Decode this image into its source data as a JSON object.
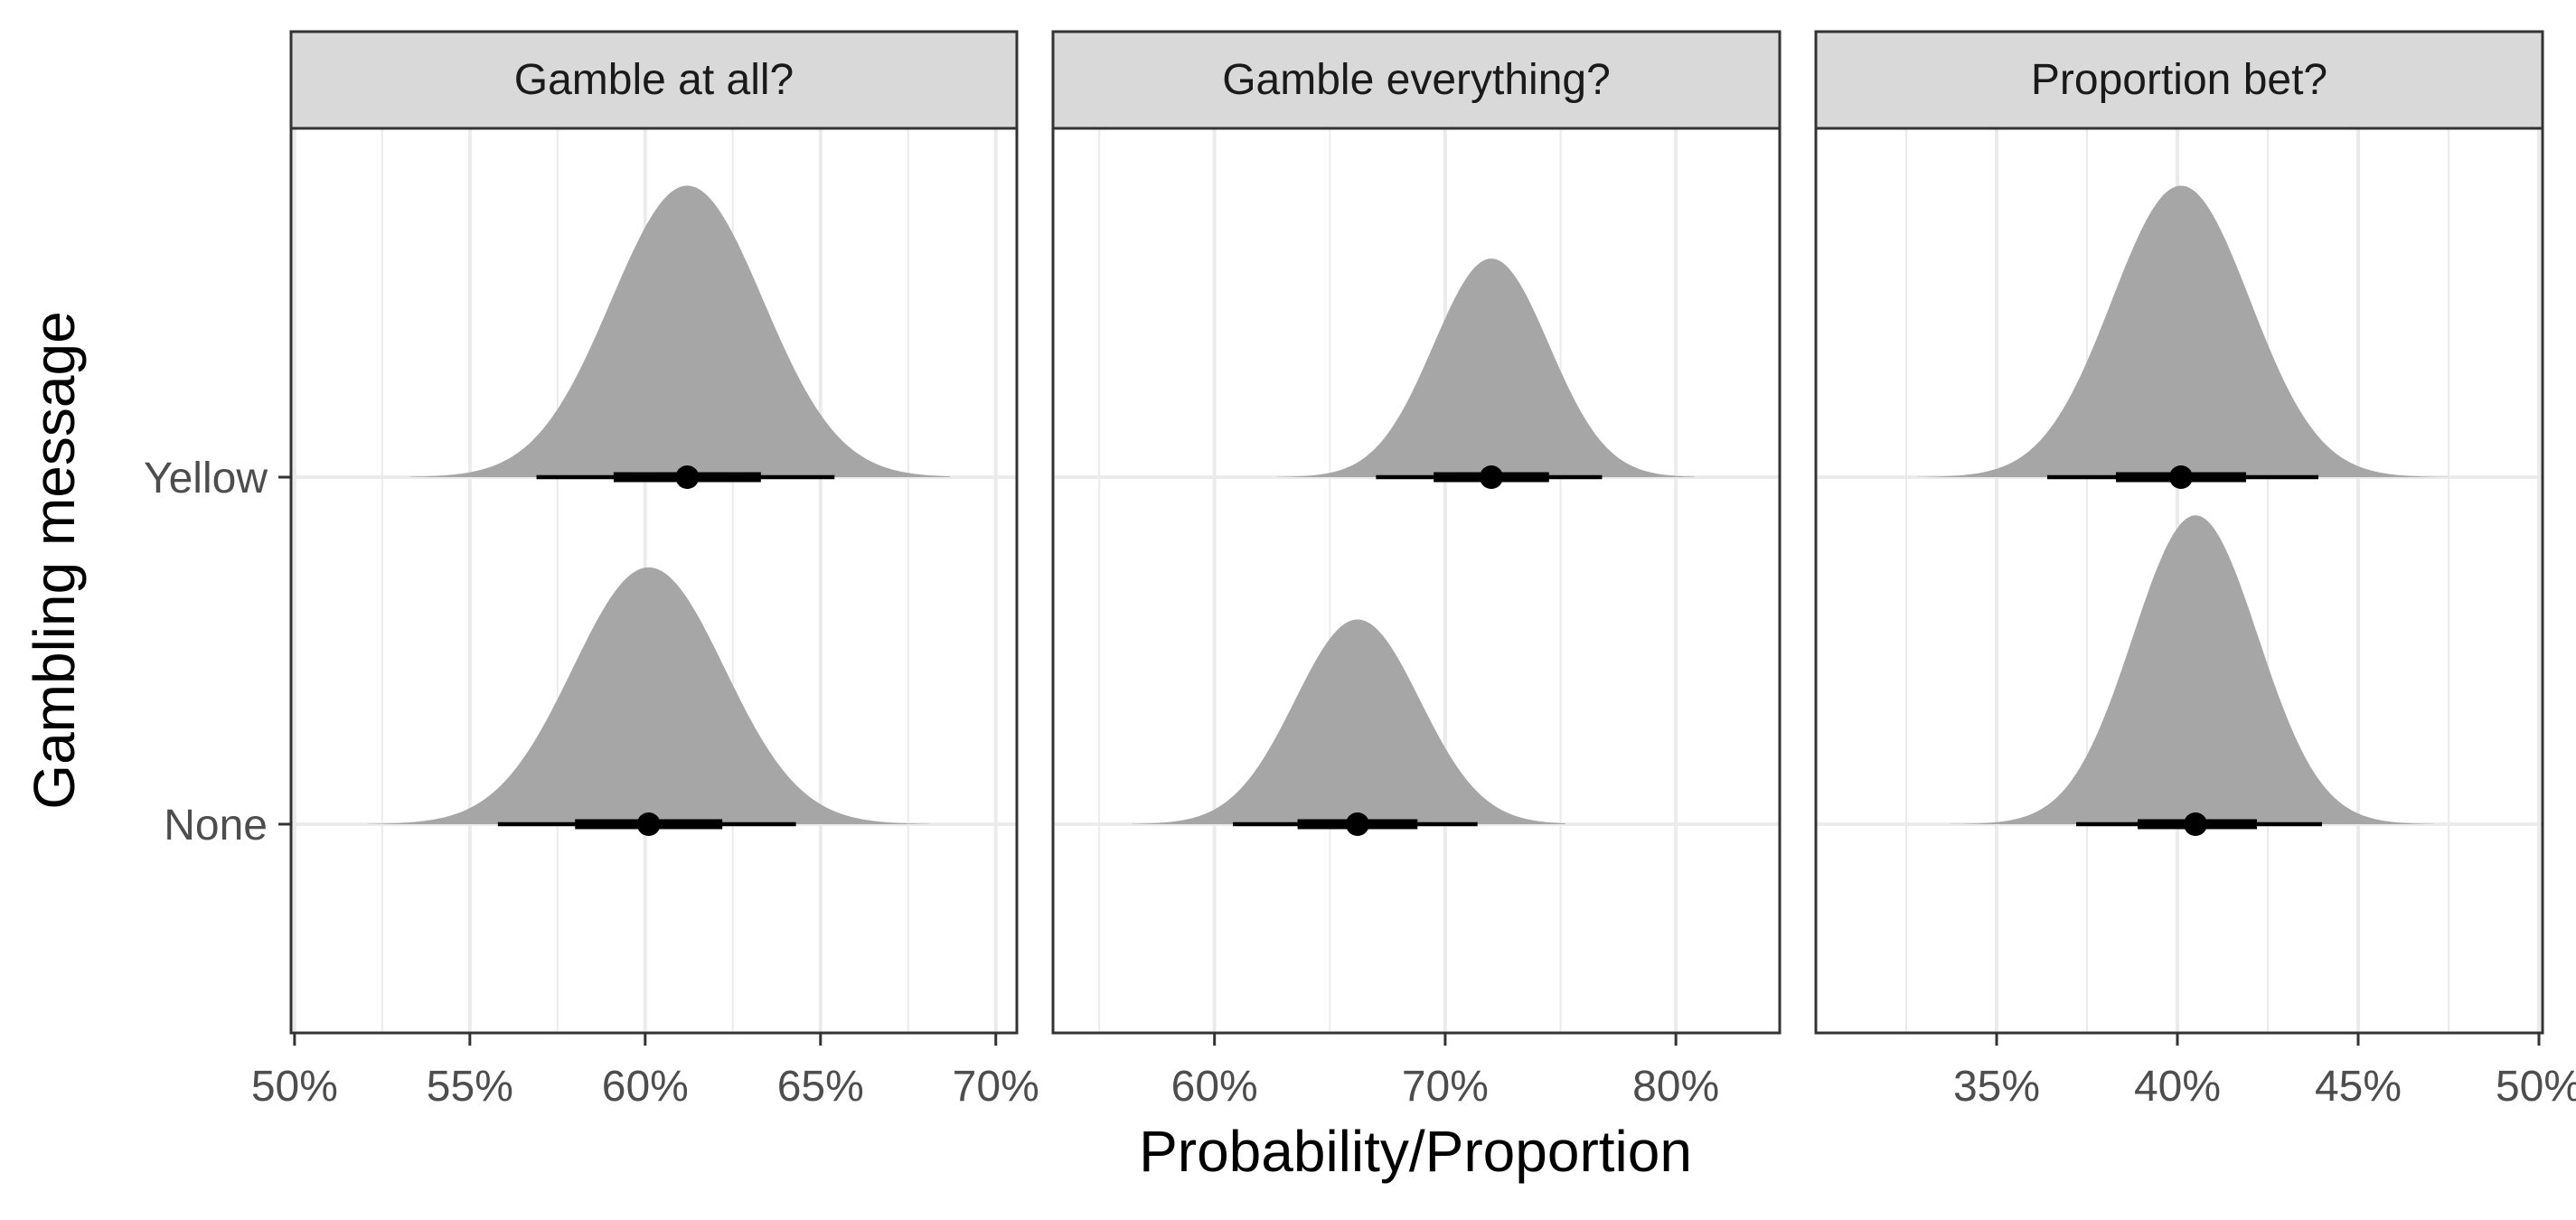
{
  "chart_data": {
    "type": "halfeye",
    "title": "",
    "xlabel": "Probability/Proportion",
    "ylabel": "Gambling message",
    "groups": [
      "None",
      "Yellow"
    ],
    "legend": "none",
    "grid": true,
    "colors": {
      "density": "#a6a6a6",
      "interval": "#000000",
      "strip": "#d9d9d9"
    },
    "facets": [
      {
        "title": "Gamble at all?",
        "xlim": [
          0.499,
          0.706
        ],
        "xticks": [
          0.5,
          0.55,
          0.6,
          0.65,
          0.7
        ],
        "xtick_labels": [
          "50%",
          "55%",
          "60%",
          "65%",
          "70%"
        ],
        "series": [
          {
            "group": "Yellow",
            "point": 0.612,
            "interval66": [
              0.591,
              0.633
            ],
            "interval95": [
              0.569,
              0.654
            ],
            "support": [
              0.533,
              0.687
            ],
            "height": 0.84
          },
          {
            "group": "None",
            "point": 0.601,
            "interval66": [
              0.58,
              0.622
            ],
            "interval95": [
              0.558,
              0.643
            ],
            "support": [
              0.521,
              0.681
            ],
            "height": 0.74
          }
        ]
      },
      {
        "title": "Gamble everything?",
        "xlim": [
          0.53,
          0.845
        ],
        "xticks": [
          0.6,
          0.7,
          0.8
        ],
        "xtick_labels": [
          "60%",
          "70%",
          "80%"
        ],
        "series": [
          {
            "group": "Yellow",
            "point": 0.72,
            "interval66": [
              0.695,
              0.745
            ],
            "interval95": [
              0.67,
              0.768
            ],
            "support": [
              0.627,
              0.808
            ],
            "height": 0.63
          },
          {
            "group": "None",
            "point": 0.662,
            "interval66": [
              0.636,
              0.688
            ],
            "interval95": [
              0.608,
              0.714
            ],
            "support": [
              0.564,
              0.752
            ],
            "height": 0.59
          }
        ]
      },
      {
        "title": "Proportion bet?",
        "xlim": [
          0.3,
          0.501
        ],
        "xticks": [
          0.35,
          0.4,
          0.45,
          0.5
        ],
        "xtick_labels": [
          "35%",
          "40%",
          "45%",
          "50%"
        ],
        "series": [
          {
            "group": "Yellow",
            "point": 0.401,
            "interval66": [
              0.383,
              0.419
            ],
            "interval95": [
              0.364,
              0.439
            ],
            "support": [
              0.328,
              0.475
            ],
            "height": 0.84
          },
          {
            "group": "None",
            "point": 0.405,
            "interval66": [
              0.389,
              0.422
            ],
            "interval95": [
              0.372,
              0.44
            ],
            "support": [
              0.337,
              0.471
            ],
            "height": 0.89
          }
        ]
      }
    ]
  }
}
